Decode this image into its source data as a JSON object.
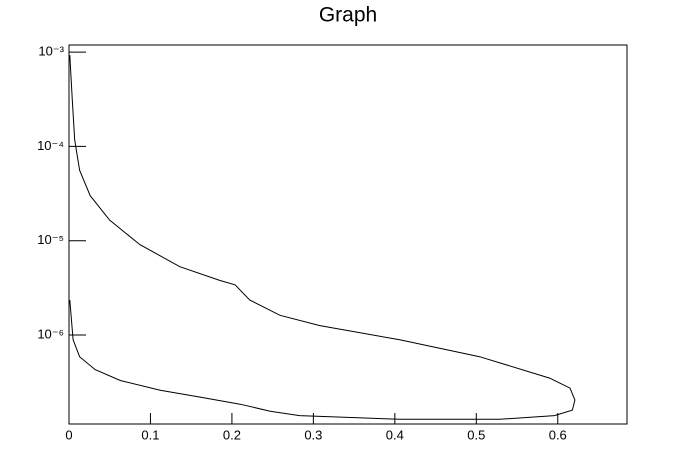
{
  "chart_data": {
    "type": "line",
    "title": "Graph",
    "log_y": true,
    "xlim": [
      0,
      0.685
    ],
    "ylim": [
      1.14e-07,
      0.00119
    ],
    "xticks": [
      0,
      0.1,
      0.2,
      0.3,
      0.4,
      0.5,
      0.6
    ],
    "yticks": [
      {
        "value": 1e-06,
        "label": "10⁻⁶"
      },
      {
        "value": 1e-05,
        "label": "10⁻⁵"
      },
      {
        "value": 0.0001,
        "label": "10⁻⁴"
      },
      {
        "value": 0.001,
        "label": "10⁻³"
      }
    ],
    "series": [
      {
        "color": "#000000",
        "x": [
          0.001,
          0.004,
          0.007,
          0.013,
          0.026,
          0.05,
          0.087,
          0.136,
          0.185,
          0.204,
          0.222,
          0.259,
          0.308,
          0.406,
          0.504,
          0.59,
          0.615,
          0.621,
          0.618,
          0.596,
          0.529,
          0.406,
          0.283,
          0.247,
          0.21,
          0.161,
          0.112,
          0.063,
          0.032,
          0.013,
          0.005,
          0.001
        ],
        "values": [
          0.00093,
          0.00031,
          0.000117,
          5.6e-05,
          3e-05,
          1.65e-05,
          9.1e-06,
          5.3e-06,
          3.8e-06,
          3.4e-06,
          2.35e-06,
          1.62e-06,
          1.26e-06,
          8.9e-07,
          5.9e-07,
          3.5e-07,
          2.74e-07,
          2.05e-07,
          1.6e-07,
          1.4e-07,
          1.28e-07,
          1.28e-07,
          1.4e-07,
          1.56e-07,
          1.85e-07,
          2.2e-07,
          2.6e-07,
          3.3e-07,
          4.3e-07,
          5.9e-07,
          8.9e-07,
          2.35e-06
        ]
      }
    ]
  }
}
